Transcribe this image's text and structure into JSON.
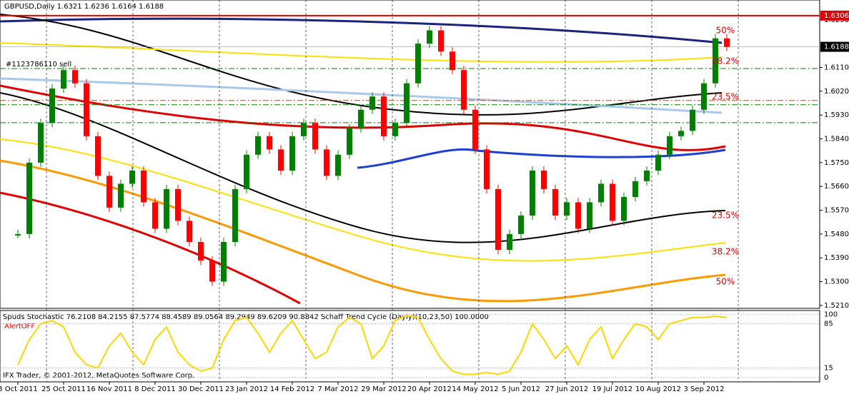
{
  "header": {
    "symbol_line": "GBPUSD,Daily  1.6321 1.6236 1.6164 1.6188",
    "order_label": "#1123786110 sell",
    "copyright": "IFX Trader, © 2001-2012, MetaQuotes Software Corp."
  },
  "chart_data": [
    {
      "type": "candlestick",
      "categories": [
        "3 Oct 2011",
        null,
        null,
        null,
        "25 Oct 2011",
        null,
        null,
        null,
        "16 Nov 2011",
        null,
        null,
        null,
        "8 Dec 2011",
        null,
        null,
        null,
        "30 Dec 2011",
        null,
        null,
        null,
        "23 Jan 2012",
        null,
        null,
        null,
        "14 Feb 2012",
        null,
        null,
        null,
        "7 Mar 2012",
        null,
        null,
        null,
        "29 Mar 2012",
        null,
        null,
        null,
        "20 Apr 2012",
        null,
        null,
        null,
        "14 May 2012",
        null,
        null,
        null,
        "5 Jun 2012",
        null,
        null,
        null,
        "27 Jun 2012",
        null,
        null,
        null,
        "19 Jul 2012",
        null,
        null,
        null,
        "10 Aug 2012",
        null,
        null,
        null,
        "3 Sep 2012",
        null,
        null
      ],
      "values": [
        1.548,
        1.575,
        1.59,
        1.603,
        1.61,
        1.605,
        1.585,
        1.57,
        1.558,
        1.567,
        1.572,
        1.56,
        1.55,
        1.565,
        1.553,
        1.545,
        1.538,
        1.53,
        1.545,
        1.565,
        1.578,
        1.585,
        1.58,
        1.572,
        1.585,
        1.59,
        1.58,
        1.57,
        1.578,
        1.588,
        1.595,
        1.6,
        1.585,
        1.59,
        1.605,
        1.62,
        1.625,
        1.617,
        1.61,
        1.595,
        1.58,
        1.565,
        1.542,
        1.548,
        1.555,
        1.572,
        1.565,
        1.555,
        1.56,
        1.55,
        1.56,
        1.567,
        1.553,
        1.562,
        1.568,
        1.572,
        1.578,
        1.585,
        1.587,
        1.595,
        1.605,
        1.622,
        1.6188
      ],
      "color_up": "#008000",
      "color_down": "#ff0000",
      "ylim": [
        1.5199,
        1.6365
      ],
      "yticks": [
        {
          "value": 1.629,
          "label": "1.6290"
        },
        {
          "value": 1.611,
          "label": "1.6110"
        },
        {
          "value": 1.602,
          "label": "1.6020"
        },
        {
          "value": 1.593,
          "label": "1.5930"
        },
        {
          "value": 1.584,
          "label": "1.5840"
        },
        {
          "value": 1.575,
          "label": "1.5750"
        },
        {
          "value": 1.566,
          "label": "1.5660"
        },
        {
          "value": 1.557,
          "label": "1.5570"
        },
        {
          "value": 1.548,
          "label": "1.5480"
        },
        {
          "value": 1.539,
          "label": "1.5390"
        },
        {
          "value": 1.53,
          "label": "1.5300"
        },
        {
          "value": 1.521,
          "label": "1.5210"
        }
      ],
      "level_line": 1.6306,
      "current_price": 1.6188,
      "levels": [
        1.6106,
        1.5985,
        1.5969,
        1.5901
      ],
      "fib_labels": [
        {
          "value": 1.6249,
          "label": "50%"
        },
        {
          "value": 1.6133,
          "label": "38.2%"
        },
        {
          "value": 1.5998,
          "label": "23.5%"
        },
        {
          "value": 1.555,
          "label": "23.5%"
        },
        {
          "value": 1.5412,
          "label": "38.2%"
        },
        {
          "value": 1.5299,
          "label": "50%"
        }
      ]
    },
    {
      "type": "line",
      "title": "Spuds Stochastic 76.2108 84.2155 87.5774 88.4589 89.0564 89.2949 89.6209 90.8842  Schaff Trend Cycle (Dayly)(10,23,50) 100.0000",
      "subtitle": "AlertOFF",
      "color": "#ffd700",
      "values": [
        20,
        60,
        85,
        90,
        80,
        40,
        20,
        15,
        50,
        70,
        40,
        20,
        60,
        80,
        40,
        20,
        10,
        15,
        60,
        90,
        95,
        70,
        40,
        70,
        90,
        60,
        30,
        40,
        80,
        95,
        85,
        30,
        50,
        90,
        98,
        95,
        60,
        30,
        10,
        5,
        5,
        8,
        5,
        10,
        40,
        85,
        60,
        30,
        50,
        20,
        60,
        80,
        30,
        60,
        85,
        80,
        60,
        85,
        90,
        95,
        95,
        97,
        95
      ],
      "ylim": [
        -7,
        106
      ],
      "yticks": [
        0,
        15,
        85,
        100
      ]
    }
  ]
}
